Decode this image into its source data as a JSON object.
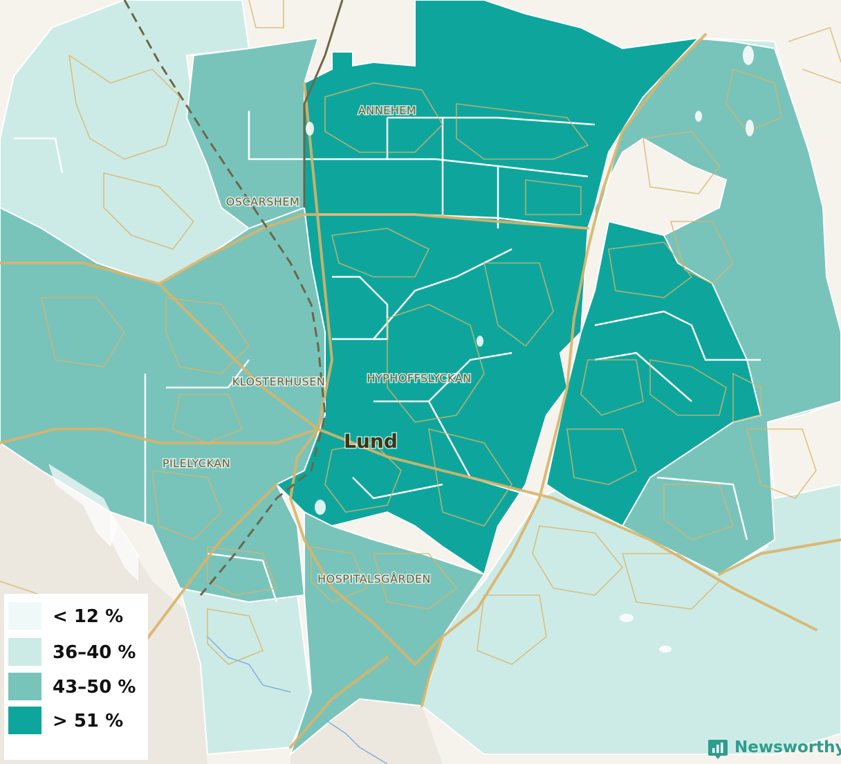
{
  "map": {
    "city_label": "Lund",
    "district_labels": {
      "annehem": "ANNEHEM",
      "oscarshem": "OSCARSHEM",
      "klosterhusen": "KLOSTERHUSEN",
      "hyphoffslyckan": "HYPHOFFSLYCKAN",
      "pilelyckan": "PILELYCKAN",
      "hospitalsgarden": "HOSPITALSGÅRDEN"
    }
  },
  "legend": {
    "items": [
      {
        "label": "< 12 %",
        "color": "#effaf8"
      },
      {
        "label": "36–40 %",
        "color": "#cdebe6"
      },
      {
        "label": "43–50 %",
        "color": "#78c4bb"
      },
      {
        "label": "> 51 %",
        "color": "#0ea69c"
      }
    ]
  },
  "brand": {
    "name": "Newsworthy",
    "icon": "newsworthy-logo-icon",
    "color": "#2e9c8e"
  }
}
